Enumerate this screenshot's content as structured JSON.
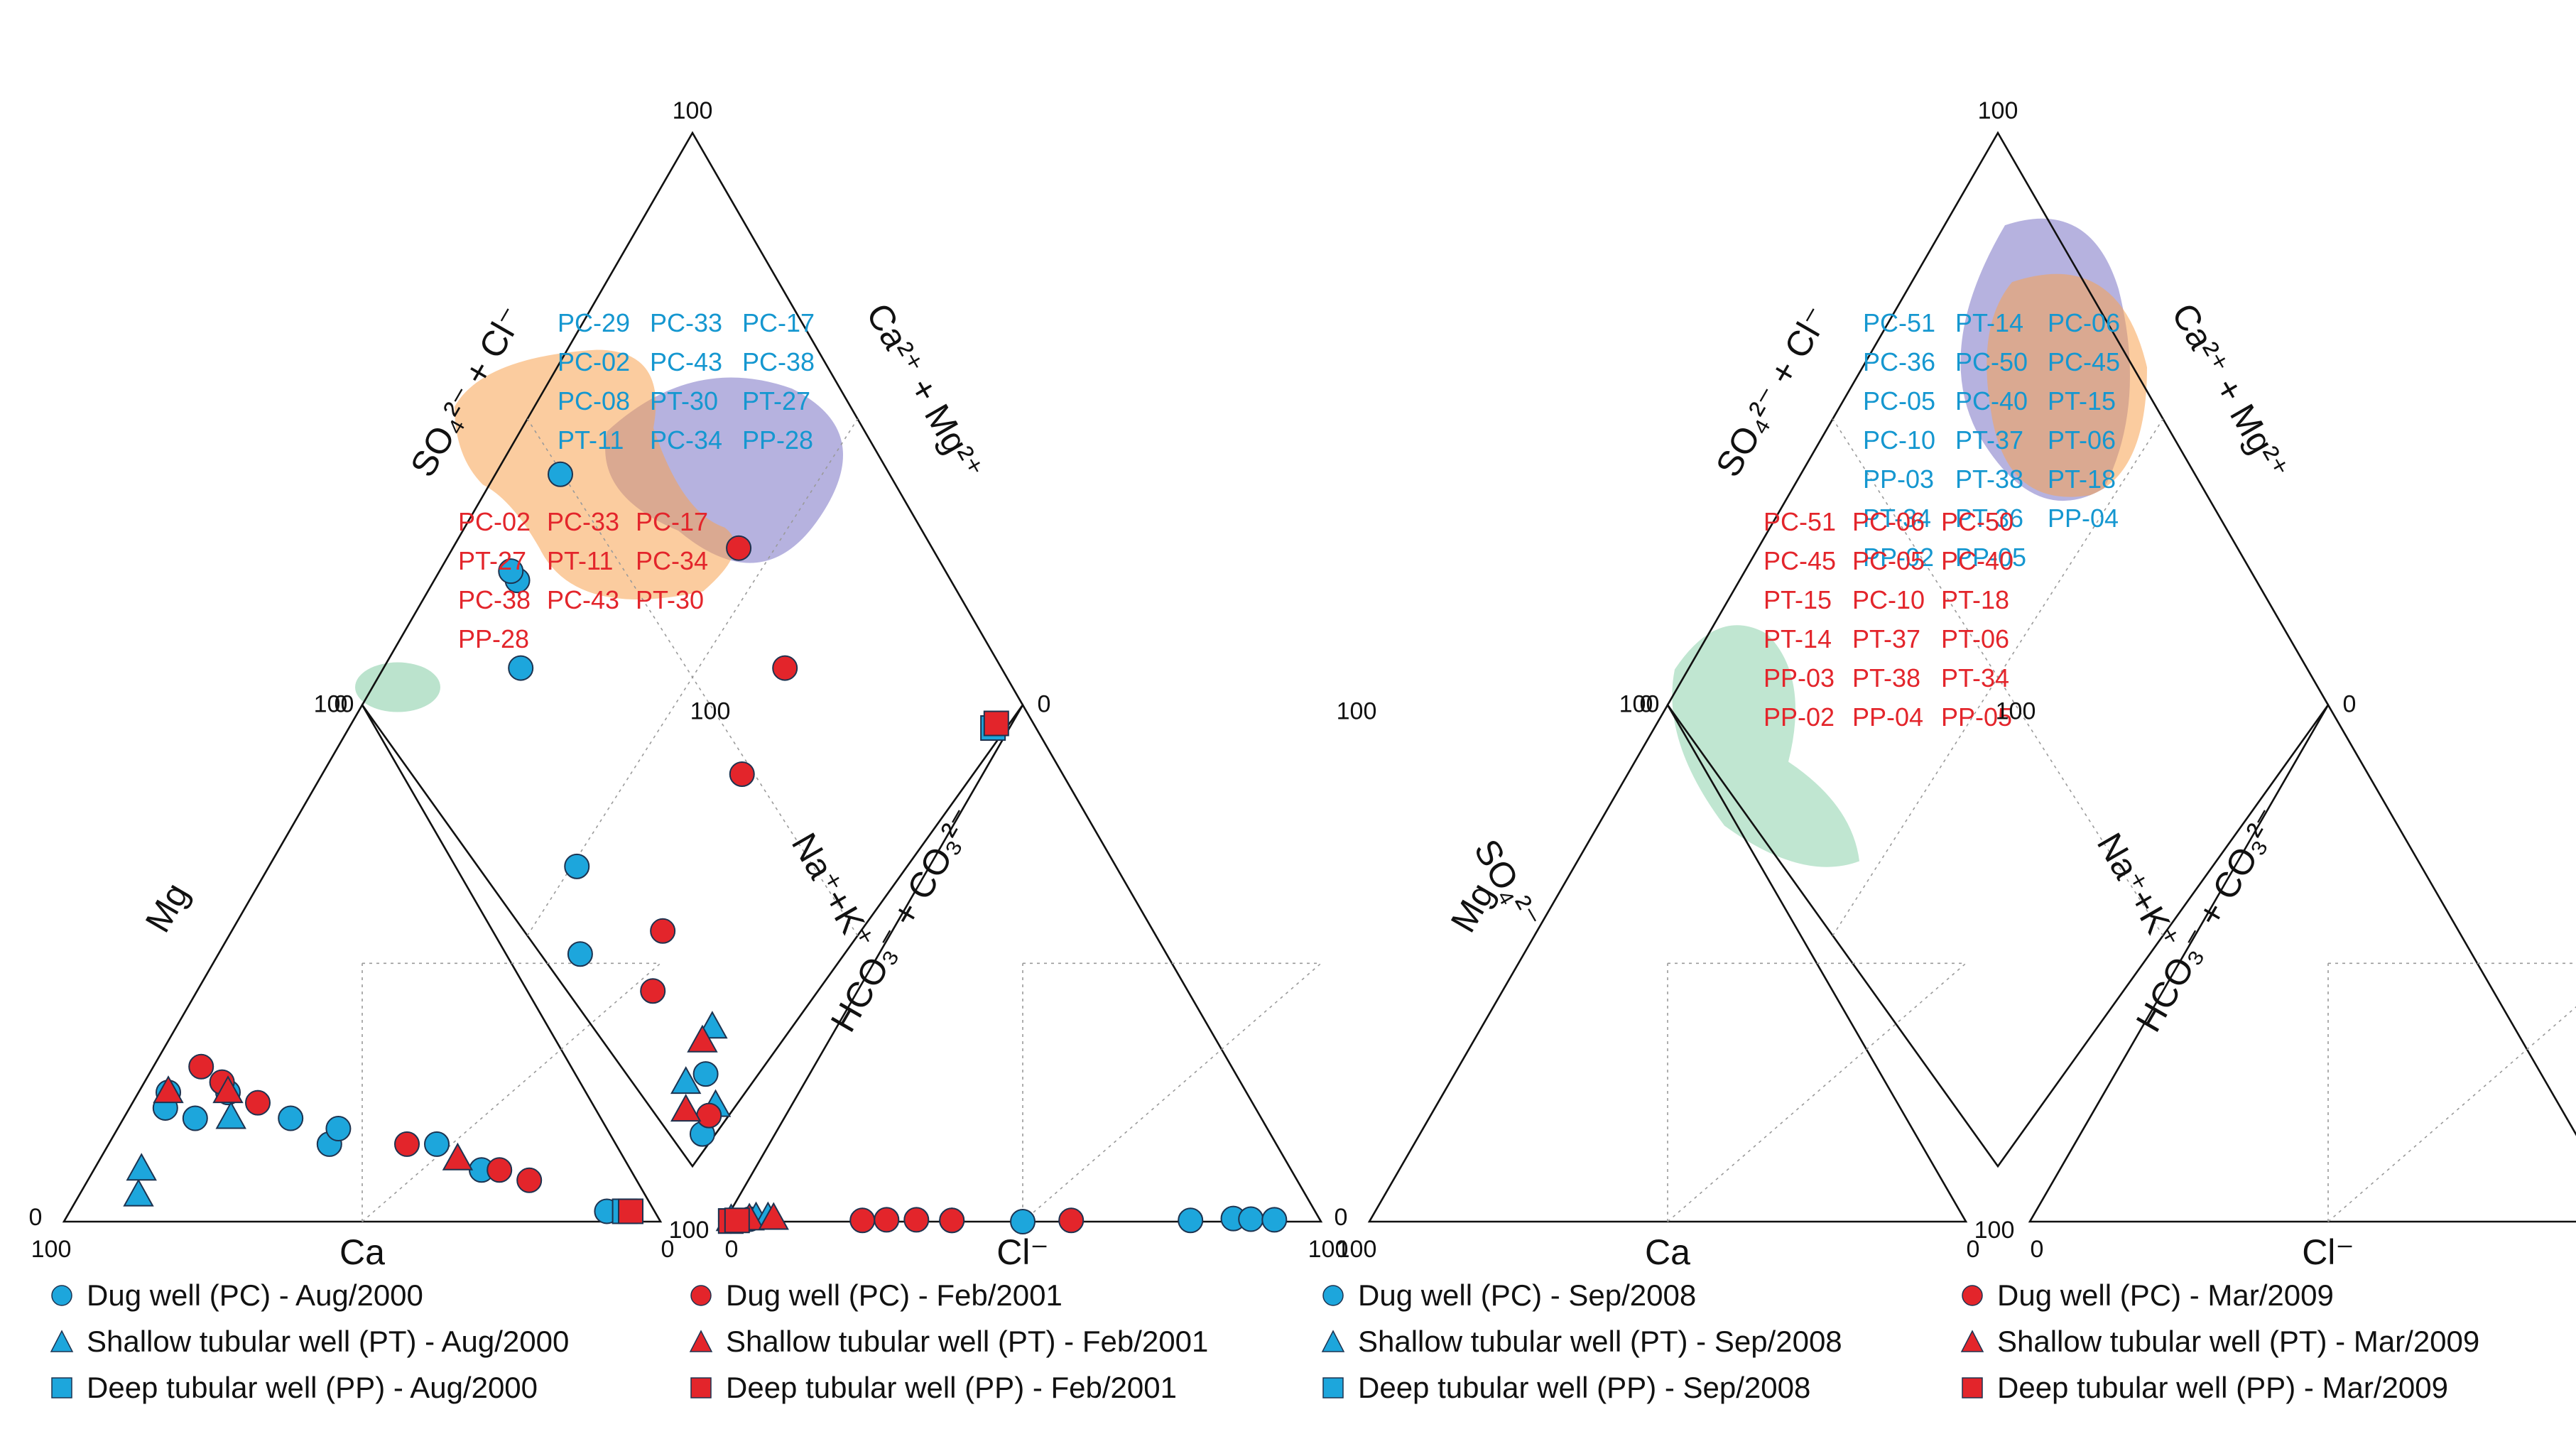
{
  "chart_data": [
    {
      "type": "scatter",
      "subtype": "piper-diagram",
      "axis_max": 100,
      "axes": {
        "cation_triangle": {
          "left_axis": "Mg2+",
          "bottom_axis": "Ca2+",
          "right_axis": "Na+ + K+"
        },
        "anion_triangle": {
          "left_axis": "HCO3- + CO3 2-",
          "bottom_axis": "Cl-",
          "right_axis": "SO4 2-"
        },
        "diamond": {
          "upper_left": "SO4 2- + Cl-",
          "upper_right": "Ca2+ + Mg2+"
        }
      },
      "series": [
        {
          "name": "Dug well (PC) - Aug/2000",
          "marker": "circle",
          "color": "#1da6dc",
          "cation_pct": [
            [
              70,
              25,
              5
            ],
            [
              68,
              20,
              12
            ],
            [
              72,
              22,
              6
            ],
            [
              60,
              25,
              15
            ],
            [
              52,
              20,
              28
            ],
            [
              48,
              15,
              37
            ],
            [
              45,
              18,
              37
            ],
            [
              30,
              15,
              55
            ],
            [
              25,
              10,
              65
            ],
            [
              8,
              2,
              90
            ]
          ],
          "anion_pct": [
            [
              98,
              1,
              1
            ],
            [
              92,
              4,
              4
            ],
            [
              60,
              38,
              2
            ],
            [
              50,
              50,
              0
            ],
            [
              20,
              78,
              2
            ],
            [
              10,
              85,
              5
            ],
            [
              8,
              88,
              4
            ],
            [
              5,
              92,
              3
            ]
          ]
        },
        {
          "name": "Shallow tubular well (PT) - Aug/2000",
          "marker": "triangle",
          "color": "#1da6dc",
          "cation_pct": [
            [
              85,
              5,
              10
            ],
            [
              82,
              10,
              8
            ],
            [
              62,
              20,
              18
            ]
          ],
          "anion_pct": [
            [
              97,
              1,
              2
            ],
            [
              90,
              5,
              5
            ],
            [
              88,
              7,
              5
            ]
          ]
        },
        {
          "name": "Deep tubular well (PP) - Aug/2000",
          "marker": "square",
          "color": "#1da6dc",
          "cation_pct": [
            [
              5,
              2,
              93
            ]
          ],
          "anion_pct": [
            [
              98,
              1,
              1
            ]
          ]
        },
        {
          "name": "Dug well (PC) - Feb/2001",
          "marker": "circle",
          "color": "#e3252b",
          "cation_pct": [
            [
              62,
              30,
              8
            ],
            [
              60,
              27,
              13
            ],
            [
              56,
              23,
              21
            ],
            [
              35,
              15,
              50
            ],
            [
              22,
              10,
              68
            ],
            [
              18,
              8,
              74
            ]
          ],
          "anion_pct": [
            [
              97,
              1,
              2
            ],
            [
              75,
              23,
              2
            ],
            [
              70,
              27,
              3
            ],
            [
              65,
              32,
              3
            ],
            [
              60,
              38,
              2
            ],
            [
              40,
              58,
              2
            ]
          ]
        },
        {
          "name": "Shallow tubular well (PT) - Feb/2001",
          "marker": "triangle",
          "color": "#e3252b",
          "cation_pct": [
            [
              70,
              25,
              5
            ],
            [
              60,
              25,
              15
            ],
            [
              28,
              12,
              60
            ]
          ],
          "anion_pct": [
            [
              93,
              4,
              3
            ],
            [
              88,
              8,
              4
            ]
          ]
        },
        {
          "name": "Deep tubular well (PP) - Feb/2001",
          "marker": "square",
          "color": "#e3252b",
          "cation_pct": [
            [
              4,
              2,
              94
            ]
          ],
          "anion_pct": [
            [
              98,
              1,
              1
            ],
            [
              96,
              2,
              2
            ]
          ]
        }
      ],
      "diamond_labels": {
        "blue": [
          "PC-29",
          "PC-33",
          "PC-17",
          "PC-02",
          "PC-43",
          "PC-38",
          "PC-08",
          "PT-30",
          "PT-27",
          "PT-11",
          "PC-34",
          "PP-28"
        ],
        "red": [
          "PC-02",
          "PC-33",
          "PC-17",
          "PT-27",
          "PT-11",
          "PC-34",
          "PC-38",
          "PC-43",
          "PT-30",
          "PP-28"
        ]
      }
    },
    {
      "type": "scatter",
      "subtype": "piper-diagram",
      "axis_max": 100,
      "series": [
        {
          "name": "Dug well (PC) - Sep/2008",
          "marker": "circle",
          "color": "#1da6dc"
        },
        {
          "name": "Shallow tubular well (PT) - Sep/2008",
          "marker": "triangle",
          "color": "#1da6dc"
        },
        {
          "name": "Deep tubular well (PP) - Sep/2008",
          "marker": "square",
          "color": "#1da6dc"
        },
        {
          "name": "Dug well (PC) - Mar/2009",
          "marker": "circle",
          "color": "#e3252b"
        },
        {
          "name": "Shallow tubular well (PT) - Mar/2009",
          "marker": "triangle",
          "color": "#e3252b"
        },
        {
          "name": "Deep tubular well (PP) - Mar/2009",
          "marker": "square",
          "color": "#e3252b"
        }
      ],
      "diamond_labels": {
        "blue": [
          "PC-51",
          "PT-14",
          "PC-06",
          "PC-36",
          "PC-50",
          "PC-45",
          "PC-05",
          "PC-40",
          "PT-15",
          "PC-10",
          "PT-37",
          "PT-06",
          "PP-03",
          "PT-38",
          "PT-18",
          "PT-34",
          "PT-36",
          "PP-04",
          "PP-02",
          "PP-05"
        ],
        "red": [
          "PC-51",
          "PC-06",
          "PC-50",
          "PC-45",
          "PC-05",
          "PC-40",
          "PT-15",
          "PC-10",
          "PT-18",
          "PT-14",
          "PT-37",
          "PT-06",
          "PP-03",
          "PT-38",
          "PT-34",
          "PP-02",
          "PP-04",
          "PP-05"
        ]
      }
    }
  ],
  "text": {
    "tick_100": "100",
    "tick_0": "0",
    "axis_mg": "Mg",
    "axis_ca": "Ca",
    "axis_nak": "Na⁺+K⁺",
    "axis_hco3": "HCO₃⁻ + CO₃²⁻",
    "axis_cl": "Cl⁻",
    "axis_so4": "SO₄²⁻",
    "axis_so4cl": "SO₄²⁻ + Cl⁻",
    "axis_camg": "Ca²⁺ + Mg²⁺",
    "sup_2plus": "2+"
  },
  "legend": [
    {
      "label": "Dug well (PC) - Aug/2000",
      "marker": "circle",
      "color": "#1da6dc"
    },
    {
      "label": "Shallow tubular well (PT) - Aug/2000",
      "marker": "triangle",
      "color": "#1da6dc"
    },
    {
      "label": "Deep tubular well (PP) - Aug/2000",
      "marker": "square",
      "color": "#1da6dc"
    },
    {
      "label": "Dug well (PC) - Feb/2001",
      "marker": "circle",
      "color": "#e3252b"
    },
    {
      "label": "Shallow tubular well (PT) - Feb/2001",
      "marker": "triangle",
      "color": "#e3252b"
    },
    {
      "label": "Deep tubular well (PP) - Feb/2001",
      "marker": "square",
      "color": "#e3252b"
    },
    {
      "label": "Dug well (PC) - Sep/2008",
      "marker": "circle",
      "color": "#1da6dc"
    },
    {
      "label": "Shallow tubular well (PT) - Sep/2008",
      "marker": "triangle",
      "color": "#1da6dc"
    },
    {
      "label": "Deep tubular well (PP) - Sep/2008",
      "marker": "square",
      "color": "#1da6dc"
    },
    {
      "label": "Dug well (PC) - Mar/2009",
      "marker": "circle",
      "color": "#e3252b"
    },
    {
      "label": "Shallow tubular well (PT) - Mar/2009",
      "marker": "triangle",
      "color": "#e3252b"
    },
    {
      "label": "Deep tubular well (PP) - Mar/2009",
      "marker": "square",
      "color": "#e3252b"
    }
  ],
  "colors": {
    "blue": "#1da6dc",
    "red": "#e3252b",
    "outline": "#1d3350",
    "purple_zone": "#7a73c4",
    "orange_zone": "#f7a350",
    "green_zone": "#8dd1ac"
  }
}
